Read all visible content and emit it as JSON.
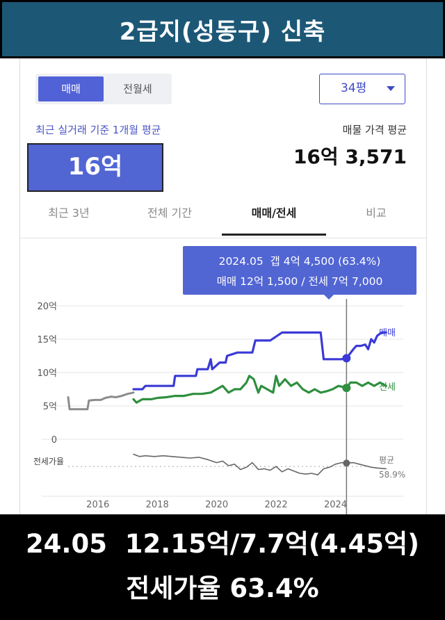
{
  "header": {
    "title": "2급지(성동구) 신축"
  },
  "controls": {
    "trade_tabs": [
      {
        "label": "매매",
        "active": true
      },
      {
        "label": "전월세",
        "active": false
      }
    ],
    "area_select": "34평"
  },
  "summary": {
    "recent_label": "최근 실거래 기준 1개월 평균",
    "recent_value": "16억",
    "avg_label": "매물 가격 평균",
    "avg_value": "16억 3,571"
  },
  "period_tabs": [
    {
      "label": "최근 3년",
      "active": false
    },
    {
      "label": "전체 기간",
      "active": false
    },
    {
      "label": "매매/전세",
      "active": true
    },
    {
      "label": "비교",
      "active": false
    }
  ],
  "tooltip": {
    "line1": "2024.05  갭 4억 4,500 (63.4%)",
    "line2": "매매 12억 1,500 / 전세 7억 7,000"
  },
  "colors": {
    "sale": "#3a3ad6",
    "jeonse": "#2f8f3f",
    "ratio": "#666666",
    "pre": "#8c8c8c",
    "accent": "#5165d3"
  },
  "chart_data": {
    "type": "line",
    "ylim": [
      0,
      20
    ],
    "yticks": [
      {
        "value": 0,
        "label": "0"
      },
      {
        "value": 5,
        "label": "5억"
      },
      {
        "value": 10,
        "label": "10억"
      },
      {
        "value": 15,
        "label": "15억"
      },
      {
        "value": 20,
        "label": "20억"
      }
    ],
    "xlim": [
      2015.0,
      2026.0
    ],
    "xticks": [
      {
        "value": 2016,
        "label": "2016"
      },
      {
        "value": 2018,
        "label": "2018"
      },
      {
        "value": 2020,
        "label": "2020"
      },
      {
        "value": 2022,
        "label": "2022"
      },
      {
        "value": 2024,
        "label": "2024"
      }
    ],
    "series": [
      {
        "name": "",
        "x": [
          2015.0,
          2015.05,
          2015.15,
          2015.3,
          2015.5,
          2015.65,
          2015.7,
          2015.9,
          2016.1,
          2016.25,
          2016.45,
          2016.6,
          2016.8,
          2017.0,
          2017.2
        ],
        "values": [
          6.3,
          4.5,
          4.5,
          4.5,
          4.5,
          4.5,
          5.8,
          5.9,
          5.9,
          6.2,
          6.4,
          6.3,
          6.5,
          6.8,
          7.0
        ]
      },
      {
        "name": "매매",
        "x": [
          2017.2,
          2017.5,
          2017.6,
          2017.9,
          2018.2,
          2018.55,
          2018.6,
          2019.0,
          2019.3,
          2019.35,
          2019.7,
          2019.8,
          2019.85,
          2020.1,
          2020.3,
          2020.35,
          2020.7,
          2021.2,
          2021.3,
          2021.8,
          2022.2,
          2022.7,
          2022.9,
          2023.2,
          2023.5,
          2023.6,
          2023.9,
          2024.2,
          2024.37,
          2024.6,
          2024.7,
          2024.85,
          2025.0,
          2025.1,
          2025.2,
          2025.3,
          2025.4,
          2025.55,
          2025.7
        ],
        "values": [
          7.5,
          7.5,
          8.0,
          8.0,
          8.0,
          8.0,
          9.5,
          9.5,
          9.5,
          10.5,
          10.5,
          12.0,
          10.5,
          11.5,
          11.5,
          12.5,
          13.0,
          13.0,
          14.8,
          14.8,
          16.0,
          16.0,
          16.0,
          16.0,
          16.0,
          12.0,
          12.0,
          12.0,
          12.15,
          13.5,
          14.0,
          14.0,
          14.2,
          13.5,
          15.0,
          14.5,
          15.5,
          16.0,
          16.0
        ]
      },
      {
        "name": "전세",
        "x": [
          2017.2,
          2017.3,
          2017.5,
          2017.8,
          2018.0,
          2018.3,
          2018.6,
          2018.9,
          2019.2,
          2019.5,
          2019.8,
          2020.0,
          2020.2,
          2020.4,
          2020.6,
          2020.8,
          2021.0,
          2021.1,
          2021.25,
          2021.4,
          2021.5,
          2021.7,
          2021.9,
          2022.0,
          2022.1,
          2022.3,
          2022.5,
          2022.7,
          2022.9,
          2023.1,
          2023.3,
          2023.5,
          2023.7,
          2023.9,
          2024.1,
          2024.37,
          2024.5,
          2024.7,
          2024.9,
          2025.1,
          2025.3,
          2025.5,
          2025.7
        ],
        "values": [
          6.0,
          5.5,
          6.0,
          6.0,
          6.2,
          6.3,
          6.5,
          6.5,
          6.8,
          6.8,
          7.0,
          7.5,
          8.0,
          7.0,
          7.5,
          7.5,
          8.5,
          9.5,
          9.0,
          7.0,
          8.0,
          7.5,
          7.0,
          9.5,
          8.0,
          9.0,
          8.0,
          8.5,
          7.5,
          7.0,
          7.5,
          7.0,
          7.2,
          7.5,
          8.0,
          7.7,
          8.5,
          8.5,
          8.0,
          8.5,
          8.0,
          8.5,
          8.0
        ]
      },
      {
        "name": "전세가율",
        "x": [
          2017.2,
          2017.4,
          2017.6,
          2017.9,
          2018.2,
          2018.5,
          2018.8,
          2019.1,
          2019.4,
          2019.7,
          2020.0,
          2020.2,
          2020.4,
          2020.6,
          2020.8,
          2021.0,
          2021.2,
          2021.4,
          2021.6,
          2021.8,
          2022.0,
          2022.2,
          2022.4,
          2022.6,
          2022.8,
          2023.0,
          2023.2,
          2023.4,
          2023.6,
          2023.8,
          2024.0,
          2024.2,
          2024.37,
          2024.6,
          2024.8,
          2025.0,
          2025.2,
          2025.4,
          2025.7
        ],
        "values": [
          75.0,
          72.0,
          73.0,
          72.0,
          73.0,
          72.0,
          71.0,
          70.0,
          71.0,
          68.0,
          64.0,
          66.0,
          60.0,
          62.0,
          55.0,
          58.0,
          64.0,
          55.0,
          56.0,
          54.0,
          59.0,
          52.0,
          56.0,
          53.0,
          50.0,
          49.0,
          50.0,
          48.0,
          56.0,
          58.0,
          62.0,
          64.0,
          63.4,
          64.0,
          62.0,
          60.0,
          58.0,
          57.0,
          56.0
        ]
      }
    ],
    "ratio_avg": {
      "label": "평균",
      "value": "58.9%",
      "numeric": 58.9
    },
    "ratio_axis_label": "전세가율",
    "ratio_range": [
      40,
      80
    ],
    "highlight": {
      "x": 2024.37,
      "sale": 12.15,
      "jeonse": 7.7,
      "ratio": 63.4
    },
    "series_labels": {
      "sale": "매매",
      "jeonse": "전세"
    }
  },
  "footer": {
    "line1": "24.05  12.15억/7.7억(4.45억)",
    "line2": "전세가율 63.4%"
  }
}
